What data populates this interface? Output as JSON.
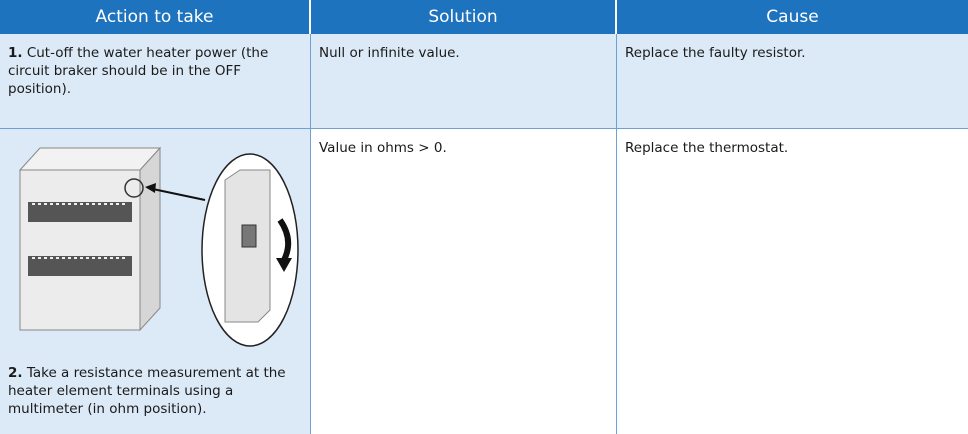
{
  "header": [
    "Action to take",
    "Solution",
    "Cause"
  ],
  "steps": [
    {
      "number": "1.",
      "text": "Cut-off the water heater power (the circuit braker should be in the OFF position)."
    },
    {
      "number": "2.",
      "text": "Take a resistance measurement at the heater element terminals using a multimeter (in ohm position)."
    }
  ],
  "rows": [
    [
      "Null or infinite value.",
      "Replace the faulty resistor."
    ],
    [
      "Value in ohms > 0.",
      "Replace the thermostat."
    ]
  ]
}
